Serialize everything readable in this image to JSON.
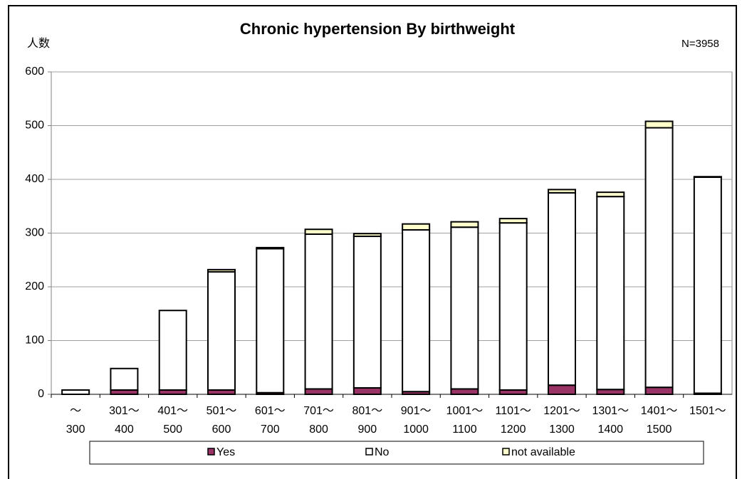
{
  "chart_data": {
    "type": "stacked_bar",
    "title": "Chronic hypertension By birthweight",
    "y_label": "人数",
    "annotation": "N=3958",
    "categories": [
      "～300",
      "301～400",
      "401～500",
      "501～600",
      "601～700",
      "701～800",
      "801～900",
      "901～1000",
      "1001～1100",
      "1101～1200",
      "1201～1300",
      "1301～1400",
      "1401～1500",
      "1501～"
    ],
    "series": [
      {
        "name": "Yes",
        "color": "#993366",
        "values": [
          0,
          8,
          8,
          8,
          3,
          10,
          12,
          5,
          10,
          8,
          17,
          9,
          13,
          2
        ]
      },
      {
        "name": "No",
        "color": "#ffffff",
        "values": [
          8,
          40,
          148,
          220,
          268,
          288,
          282,
          301,
          301,
          311,
          358,
          359,
          483,
          402
        ]
      },
      {
        "name": "not available",
        "color": "#ffffcc",
        "values": [
          0,
          0,
          0,
          4,
          2,
          9,
          5,
          11,
          10,
          8,
          6,
          8,
          12,
          1
        ]
      }
    ],
    "ylim": [
      0,
      600
    ],
    "yticks": [
      0,
      100,
      200,
      300,
      400,
      500,
      600
    ],
    "grid": true,
    "legend": "bottom"
  }
}
